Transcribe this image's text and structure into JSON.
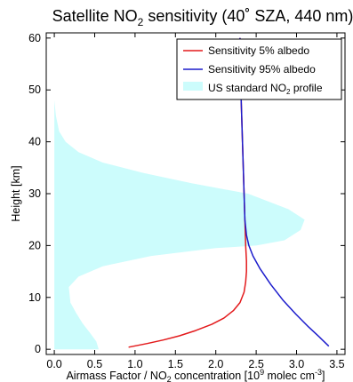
{
  "chart_data": {
    "type": "line",
    "title": {
      "pre": "Satellite NO",
      "sub": "2",
      "post": " sensitivity (40˚ SZA, 440 nm)"
    },
    "xlabel": {
      "pre": "Airmass Factor / NO",
      "sub": "2",
      "mid": " concentration [10",
      "sup": "9",
      "post": " molec cm",
      "sup2": "-3",
      "end": "]"
    },
    "ylabel": "Height [km]",
    "xlim": [
      -0.1,
      3.6
    ],
    "ylim": [
      -1,
      61
    ],
    "xticks": [
      0.0,
      0.5,
      1.0,
      1.5,
      2.0,
      2.5,
      3.0,
      3.5
    ],
    "xtick_labels": [
      "0.0",
      "0.5",
      "1.0",
      "1.5",
      "2.0",
      "2.5",
      "3.0",
      "3.5"
    ],
    "yticks": [
      0,
      10,
      20,
      30,
      40,
      50,
      60
    ],
    "ytick_labels": [
      "0",
      "10",
      "20",
      "30",
      "40",
      "50",
      "60"
    ],
    "grid": false,
    "legend_position": "top-right",
    "series": [
      {
        "name": "Sensitivity 5% albedo",
        "kind": "line",
        "color": "#e31a1c",
        "x": [
          2.3,
          2.3,
          2.31,
          2.32,
          2.33,
          2.34,
          2.35,
          2.36,
          2.37,
          2.38,
          2.38,
          2.37,
          2.35,
          2.3,
          2.22,
          2.1,
          1.95,
          1.75,
          1.55,
          1.35,
          1.15,
          0.92
        ],
        "y": [
          60,
          55,
          50,
          45,
          40,
          35,
          30,
          25,
          20,
          17,
          15,
          13,
          11,
          9,
          7.5,
          6,
          4.8,
          3.6,
          2.6,
          1.8,
          1.1,
          0.4
        ]
      },
      {
        "name": "Sensitivity 95% albedo",
        "kind": "line",
        "color": "#1c1ccc",
        "x": [
          2.3,
          2.3,
          2.31,
          2.32,
          2.33,
          2.34,
          2.35,
          2.36,
          2.38,
          2.41,
          2.46,
          2.55,
          2.68,
          2.83,
          2.99,
          3.15,
          3.28,
          3.4
        ],
        "y": [
          60,
          55,
          50,
          45,
          40,
          35,
          30,
          25,
          22,
          20,
          18,
          15.5,
          12.5,
          9.5,
          6.8,
          4.3,
          2.4,
          0.6
        ]
      },
      {
        "name": "US standard NO2 profile",
        "legend_label": {
          "pre": "US standard NO",
          "sub": "2",
          "post": " profile"
        },
        "kind": "area",
        "color": "#ccfcfc",
        "x": [
          0,
          0.02,
          0.06,
          0.14,
          0.3,
          0.6,
          1.1,
          1.7,
          2.4,
          2.9,
          3.1,
          3.05,
          2.85,
          2.5,
          2.0,
          1.2,
          0.6,
          0.3,
          0.18,
          0.2,
          0.27,
          0.35,
          0.45,
          0.52,
          0.55,
          0
        ],
        "y": [
          48,
          45,
          42,
          40,
          38,
          36,
          34,
          32,
          30,
          27,
          25,
          23,
          21,
          20,
          19.5,
          18,
          16,
          14,
          12,
          9,
          7,
          5,
          3,
          1.5,
          0,
          0
        ]
      }
    ]
  }
}
